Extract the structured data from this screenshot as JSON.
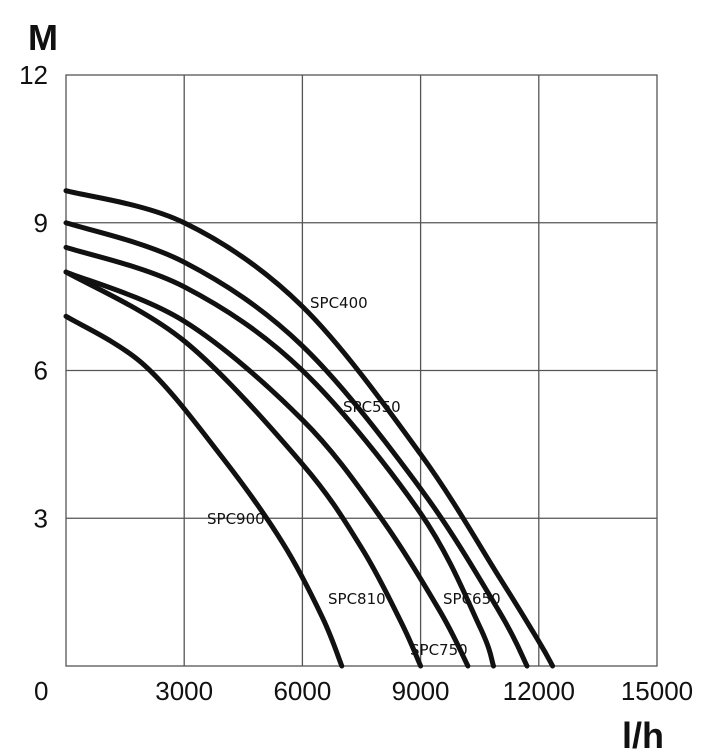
{
  "chart_data": {
    "type": "line",
    "ylabel": "M",
    "xlabel": "l/h",
    "xlim": [
      0,
      15000
    ],
    "ylim": [
      0,
      12
    ],
    "x_ticks": [
      0,
      3000,
      6000,
      9000,
      12000,
      15000
    ],
    "y_ticks": [
      3,
      6,
      9,
      12
    ],
    "grid": true,
    "series": [
      {
        "name": "SPC400",
        "x": [
          0,
          3000,
          6000,
          9000,
          11000,
          12000,
          12350
        ],
        "y": [
          9.65,
          9.0,
          7.3,
          4.3,
          1.8,
          0.5,
          0
        ]
      },
      {
        "name": "SPC550",
        "x": [
          0,
          3000,
          6000,
          9000,
          11000,
          11700
        ],
        "y": [
          9.0,
          8.2,
          6.5,
          3.6,
          1.1,
          0
        ]
      },
      {
        "name": "SPC650",
        "x": [
          0,
          3000,
          6000,
          9000,
          10500,
          10850
        ],
        "y": [
          8.5,
          7.7,
          6.0,
          3.1,
          0.8,
          0
        ]
      },
      {
        "name": "SPC750",
        "x": [
          0,
          3000,
          6000,
          8000,
          9500,
          10200
        ],
        "y": [
          8.0,
          7.0,
          5.0,
          3.0,
          1.1,
          0
        ]
      },
      {
        "name": "SPC810",
        "x": [
          0,
          3000,
          6000,
          7500,
          8500,
          9000
        ],
        "y": [
          8.0,
          6.6,
          4.1,
          2.4,
          0.9,
          0
        ]
      },
      {
        "name": "SPC900",
        "x": [
          0,
          2000,
          4000,
          5500,
          6500,
          7000
        ],
        "y": [
          7.1,
          6.1,
          4.2,
          2.5,
          1.0,
          0
        ]
      }
    ]
  }
}
